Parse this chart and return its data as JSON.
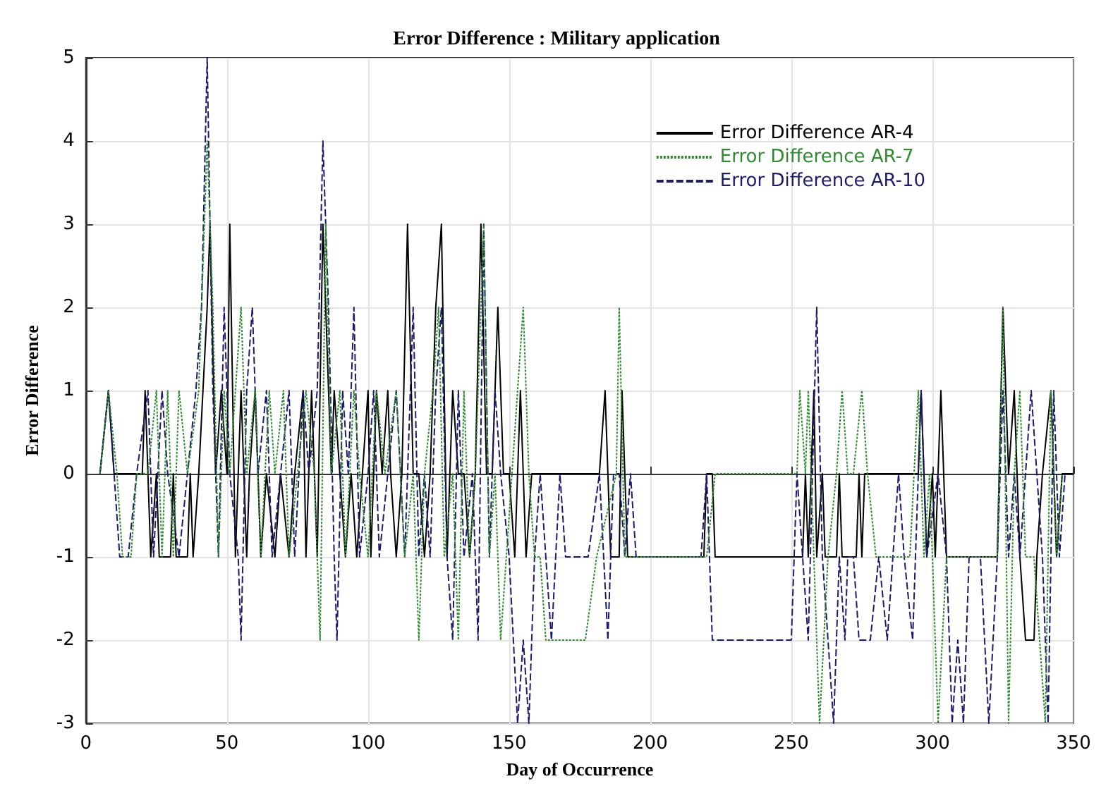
{
  "chart_data": {
    "type": "line",
    "title": "Error Difference : Military application",
    "xlabel": "Day of Occurrence",
    "ylabel": "Error Difference",
    "xlim": [
      0,
      350
    ],
    "xticks": [
      0,
      50,
      100,
      150,
      200,
      250,
      300,
      350
    ],
    "ylim": [
      -3,
      5
    ],
    "yticks": [
      -3,
      -2,
      -1,
      0,
      1,
      2,
      3,
      4,
      5
    ],
    "grid": true,
    "legend": "top right",
    "marker": "none",
    "series": [
      {
        "name": "Error Difference AR-4",
        "color": "#000000",
        "line_style": "solid",
        "x": [
          5,
          8,
          10,
          20,
          21,
          23,
          25,
          26,
          30,
          31,
          32,
          36,
          37,
          38,
          40,
          43,
          44,
          46,
          48,
          50,
          51,
          53,
          55,
          57,
          58,
          60,
          62,
          64,
          67,
          69,
          72,
          74,
          77,
          78,
          80,
          82,
          84,
          85,
          87,
          88,
          90,
          92,
          94,
          96,
          98,
          100,
          101,
          103,
          105,
          107,
          108,
          110,
          112,
          114,
          116,
          118,
          120,
          122,
          124,
          126,
          128,
          130,
          132,
          134,
          136,
          138,
          140,
          142,
          144,
          146,
          148,
          150,
          152,
          154,
          156,
          158,
          182,
          184,
          186,
          189,
          190,
          192,
          219,
          220,
          222,
          223,
          254,
          255,
          256,
          258,
          259,
          261,
          262,
          266,
          267,
          268,
          273,
          274,
          275,
          276,
          295,
          296,
          298,
          300,
          301,
          303,
          305,
          323,
          325,
          327,
          329,
          331,
          333,
          336,
          337,
          339,
          342,
          344,
          346,
          350
        ],
        "values": [
          0,
          1,
          0,
          0,
          1,
          -1,
          0,
          -1,
          -1,
          0,
          -1,
          -1,
          0,
          -1,
          0,
          2,
          3,
          0,
          1,
          0,
          3,
          -1,
          1,
          -1,
          0,
          1,
          -1,
          0,
          -1,
          0,
          -1,
          0,
          1,
          -1,
          1,
          -1,
          3,
          2,
          0,
          1,
          0,
          -1,
          0,
          -1,
          0,
          1,
          -1,
          1,
          0,
          1,
          0,
          -1,
          0,
          3,
          0,
          0,
          -1,
          0,
          2,
          3,
          -1,
          1,
          0,
          0,
          -1,
          0,
          3,
          0,
          0,
          2,
          0,
          0,
          -1,
          1,
          -1,
          0,
          0,
          1,
          -1,
          -1,
          1,
          -1,
          -1,
          0,
          0,
          -1,
          -1,
          0,
          -1,
          1,
          -1,
          0,
          -1,
          -1,
          0,
          -1,
          -1,
          0,
          -1,
          0,
          0,
          1,
          -1,
          0,
          -1,
          1,
          -1,
          -1,
          2,
          0,
          1,
          -1,
          -2,
          -2,
          -1,
          0,
          1,
          -1,
          0,
          0
        ]
      },
      {
        "name": "Error Difference AR-7",
        "color": "#2e8b2e",
        "line_style": "dotted",
        "x": [
          5,
          8,
          11,
          13,
          16,
          18,
          22,
          25,
          27,
          29,
          31,
          33,
          36,
          40,
          42,
          43,
          45,
          47,
          49,
          51,
          55,
          57,
          60,
          62,
          65,
          67,
          70,
          72,
          75,
          78,
          81,
          83,
          85,
          87,
          90,
          92,
          95,
          97,
          100,
          103,
          106,
          110,
          113,
          116,
          118,
          120,
          123,
          125,
          127,
          130,
          132,
          134,
          136,
          138,
          141,
          143,
          145,
          147,
          149,
          151,
          155,
          157,
          159,
          161,
          163,
          177,
          181,
          188,
          189,
          191,
          220,
          223,
          252,
          253,
          255,
          256,
          258,
          260,
          263,
          266,
          268,
          270,
          272,
          275,
          277,
          280,
          292,
          295,
          297,
          299,
          302,
          305,
          323,
          325,
          327,
          329,
          331,
          333,
          336,
          340,
          342,
          344,
          346
        ],
        "values": [
          0,
          1,
          0,
          -1,
          -1,
          0,
          0,
          1,
          -1,
          1,
          -1,
          1,
          0,
          1,
          3,
          4,
          2,
          -1,
          1,
          0,
          2,
          0,
          1,
          -1,
          1,
          0,
          1,
          -1,
          0,
          1,
          0,
          -2,
          3,
          0,
          1,
          -1,
          1,
          0,
          -1,
          1,
          0,
          1,
          -1,
          0,
          -2,
          0,
          1,
          2,
          -1,
          0,
          -2,
          1,
          -1,
          0,
          3,
          -1,
          0,
          -2,
          -1,
          0,
          2,
          0,
          -1,
          -1,
          -2,
          -2,
          -1,
          0,
          2,
          -1,
          -1,
          0,
          0,
          1,
          0,
          1,
          -1,
          -3,
          -1,
          0,
          1,
          0,
          0,
          1,
          0,
          -1,
          -1,
          1,
          -1,
          0,
          -3,
          -1,
          -1,
          2,
          -3,
          0,
          1,
          -1,
          -1,
          -3,
          1,
          -1,
          0
        ]
      },
      {
        "name": "Error Difference AR-10",
        "color": "#1c1c6e",
        "line_style": "dashed",
        "x": [
          5,
          8,
          10,
          12,
          15,
          18,
          22,
          24,
          27,
          29,
          33,
          36,
          39,
          41,
          43,
          45,
          47,
          49,
          51,
          54,
          55,
          57,
          59,
          61,
          64,
          66,
          69,
          72,
          74,
          77,
          79,
          82,
          84,
          86,
          88,
          89,
          91,
          93,
          95,
          97,
          100,
          102,
          104,
          107,
          110,
          113,
          116,
          118,
          120,
          122,
          124,
          126,
          128,
          130,
          132,
          134,
          137,
          139,
          141,
          143,
          145,
          147,
          150,
          153,
          155,
          157,
          159,
          161,
          163,
          165,
          168,
          170,
          178,
          182,
          185,
          187,
          189,
          191,
          193,
          195,
          218,
          220,
          222,
          238,
          250,
          252,
          254,
          256,
          259,
          261,
          263,
          265,
          267,
          269,
          270,
          272,
          274,
          278,
          281,
          284,
          288,
          290,
          293,
          296,
          298,
          302,
          305,
          307,
          309,
          311,
          313,
          317,
          320,
          323,
          325,
          327,
          329,
          331,
          333,
          335,
          337,
          339,
          341,
          343,
          345,
          347
        ],
        "values": [
          0,
          1,
          0,
          -1,
          -1,
          0,
          1,
          -1,
          1,
          0,
          -1,
          0,
          1,
          2,
          5,
          1,
          -1,
          2,
          0,
          -1,
          -2,
          1,
          2,
          0,
          1,
          -1,
          0,
          1,
          -1,
          1,
          0,
          1,
          4,
          2,
          -1,
          -2,
          1,
          0,
          2,
          -1,
          0,
          1,
          -1,
          0,
          1,
          -1,
          2,
          -1,
          0,
          -1,
          1,
          2,
          -1,
          -2,
          1,
          -1,
          0,
          -2,
          3,
          -1,
          1,
          0,
          -1,
          -3,
          -2,
          -3,
          -1,
          0,
          -1,
          -2,
          0,
          -1,
          -1,
          0,
          -2,
          0,
          0,
          -1,
          0,
          -1,
          -1,
          0,
          -2,
          -2,
          -2,
          0,
          -1,
          -2,
          2,
          -1,
          -2,
          -3,
          -1,
          -2,
          -1,
          -1,
          -2,
          -2,
          -1,
          -2,
          0,
          -1,
          -2,
          1,
          -1,
          0,
          -1,
          -3,
          -2,
          -3,
          -1,
          -1,
          -3,
          -1,
          1,
          -1,
          0,
          -1,
          0,
          1,
          0,
          -1,
          -3,
          1,
          -1,
          0
        ]
      }
    ]
  }
}
